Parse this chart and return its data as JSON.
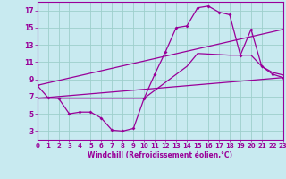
{
  "xlabel": "Windchill (Refroidissement éolien,°C)",
  "xlim": [
    0,
    23
  ],
  "ylim": [
    2,
    18
  ],
  "xticks": [
    0,
    1,
    2,
    3,
    4,
    5,
    6,
    7,
    8,
    9,
    10,
    11,
    12,
    13,
    14,
    15,
    16,
    17,
    18,
    19,
    20,
    21,
    22,
    23
  ],
  "yticks": [
    3,
    5,
    7,
    9,
    11,
    13,
    15,
    17
  ],
  "bg_color": "#c8eaf0",
  "line_color": "#990099",
  "grid_color": "#9ecfcc",
  "curve1_x": [
    0,
    1,
    2,
    3,
    4,
    5,
    6,
    7,
    8,
    9,
    10,
    11,
    12,
    13,
    14,
    15,
    16,
    17,
    18,
    19,
    20,
    21,
    22,
    23
  ],
  "curve1_y": [
    8.3,
    6.9,
    6.8,
    5.0,
    5.2,
    5.2,
    4.5,
    3.1,
    3.0,
    3.3,
    6.8,
    9.6,
    12.2,
    15.0,
    15.2,
    17.3,
    17.5,
    16.8,
    16.5,
    11.8,
    14.8,
    10.5,
    9.6,
    9.2
  ],
  "curve2_x": [
    0,
    23
  ],
  "curve2_y": [
    6.8,
    9.2
  ],
  "curve3_x": [
    0,
    23
  ],
  "curve3_y": [
    8.3,
    14.8
  ],
  "curve4_x": [
    0,
    1,
    2,
    3,
    9,
    10,
    14,
    15,
    18,
    20,
    21,
    22,
    23
  ],
  "curve4_y": [
    6.8,
    6.8,
    6.8,
    6.8,
    6.8,
    6.8,
    10.5,
    12.0,
    11.8,
    11.8,
    10.5,
    9.8,
    9.5
  ]
}
